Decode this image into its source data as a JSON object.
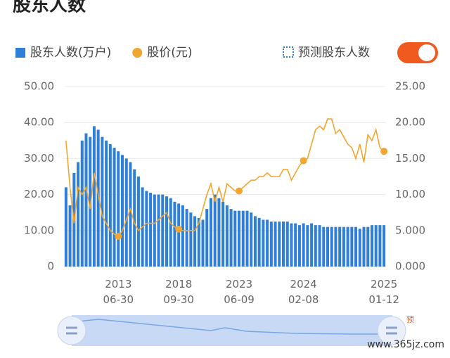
{
  "chart_data": {
    "type": "bar_line",
    "title": "股东人数",
    "toggle_label": "预测股东人数",
    "navigator_label": "预",
    "watermark": "www.365jz.com",
    "categories": [
      null,
      null,
      null,
      null,
      null,
      null,
      null,
      null,
      null,
      null,
      null,
      null,
      null,
      "2013 06-30",
      null,
      null,
      null,
      null,
      null,
      null,
      null,
      null,
      null,
      null,
      null,
      null,
      null,
      null,
      "2018 09-30",
      null,
      null,
      null,
      null,
      null,
      null,
      null,
      null,
      null,
      null,
      null,
      null,
      null,
      null,
      "2023 06-09",
      null,
      null,
      null,
      null,
      null,
      null,
      null,
      null,
      null,
      null,
      null,
      null,
      null,
      null,
      null,
      "2024 02-08",
      null,
      null,
      null,
      null,
      null,
      null,
      null,
      null,
      null,
      null,
      null,
      null,
      null,
      null,
      null,
      null,
      null,
      null,
      null,
      "2025 01-12"
    ],
    "series": [
      {
        "name": "股东人数(万户)",
        "color": "#2f7fd8",
        "axis": "y",
        "values": [
          22,
          17,
          26,
          29,
          35,
          37,
          36,
          39,
          38,
          36,
          35,
          34,
          33,
          32,
          31,
          30,
          29,
          27,
          25,
          22,
          21,
          20.5,
          20,
          20,
          20,
          19.5,
          19,
          18,
          17.5,
          17,
          16,
          15,
          14,
          13.5,
          13,
          16,
          19,
          20,
          19,
          18,
          17,
          16,
          15.5,
          15.5,
          15.5,
          15.5,
          15,
          14,
          13.5,
          13,
          13,
          12.5,
          12.5,
          12.5,
          12.5,
          12.5,
          12,
          12,
          11.5,
          12,
          11.5,
          12,
          11.5,
          11.5,
          11,
          11,
          11,
          11,
          11,
          11,
          11,
          11,
          11,
          10.5,
          11,
          11,
          11.5,
          11.5,
          11.5,
          11.5
        ]
      },
      {
        "name": "股价(元)",
        "color": "#f0a630",
        "axis": "y2",
        "values": [
          17.5,
          11,
          6,
          11,
          10,
          11,
          8,
          13,
          10,
          7,
          6,
          5,
          4.5,
          4.2,
          5,
          6.5,
          8,
          6,
          5,
          5.5,
          6,
          6,
          6,
          6.5,
          7,
          7.5,
          6,
          5.5,
          5.2,
          5,
          5,
          5,
          5,
          6,
          8,
          10,
          11.5,
          9,
          11,
          9,
          11.5,
          11,
          10.5,
          10.5,
          11,
          11.5,
          12,
          12,
          12.5,
          12.5,
          13,
          12.5,
          12.5,
          12.5,
          13.5,
          13.5,
          12,
          13,
          14,
          14.7,
          15,
          17,
          19,
          19.5,
          19,
          20.5,
          20.5,
          18.5,
          19,
          18,
          17,
          16.5,
          15,
          17,
          14.5,
          18.3,
          17.5,
          19,
          16.5,
          16
        ]
      }
    ],
    "ylim": [
      0,
      50
    ],
    "yticks": [
      {
        "value": 0,
        "label": "0"
      },
      {
        "value": 10,
        "label": "10.00"
      },
      {
        "value": 20,
        "label": "20.00"
      },
      {
        "value": 30,
        "label": "30.00"
      },
      {
        "value": 40,
        "label": "40.00"
      },
      {
        "value": 50,
        "label": "50.00"
      }
    ],
    "y2lim": [
      0,
      25
    ],
    "y2ticks": [
      {
        "value": 0,
        "label": "0.000"
      },
      {
        "value": 5,
        "label": "5.000"
      },
      {
        "value": 10,
        "label": "10.00"
      },
      {
        "value": 15,
        "label": "15.00"
      },
      {
        "value": 20,
        "label": "20.00"
      },
      {
        "value": 25,
        "label": "25.00"
      }
    ],
    "grid": true
  }
}
